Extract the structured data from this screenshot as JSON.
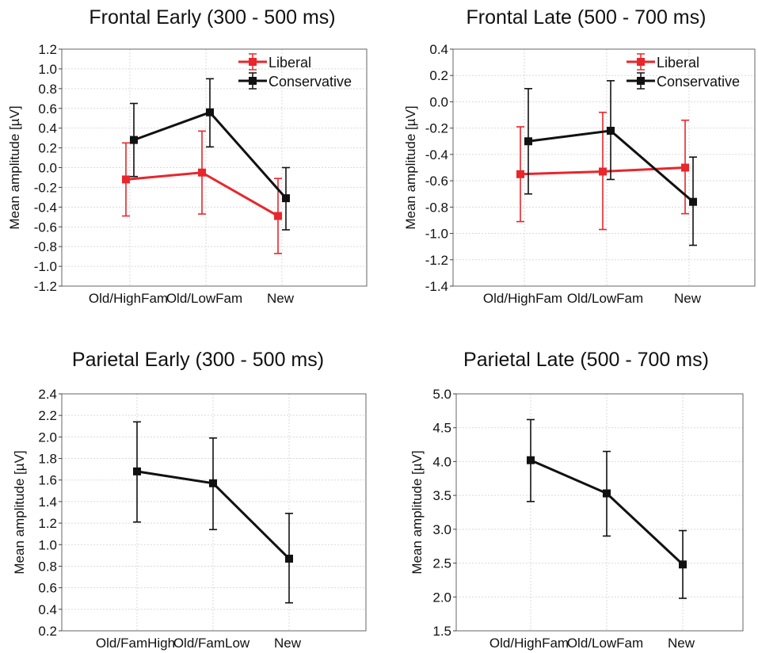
{
  "figure_type": "error-bar line charts",
  "colors": {
    "Liberal": "#e8262c",
    "Conservative": "#111111",
    "grid": "#d9d9d9",
    "frame": "#666666"
  },
  "chart_data": [
    {
      "type": "line",
      "title": "Frontal Early (300 - 500 ms)",
      "xlabel": "",
      "ylabel": "Mean amplitude [µV]",
      "categories": [
        "Old/HighFam",
        "Old/LowFam",
        "New"
      ],
      "ylim": [
        -1.2,
        1.2
      ],
      "yticks": [
        1.2,
        1.0,
        0.8,
        0.6,
        0.4,
        0.2,
        0.0,
        -0.2,
        -0.4,
        -0.6,
        -0.8,
        -1.0,
        -1.2
      ],
      "ytick_labels": [
        "1.2",
        "1.0",
        "0.8",
        "0.6",
        "0.4",
        "0.2",
        "0.0",
        "-0.2",
        "-0.4",
        "-0.6",
        "-0.8",
        "-1.0",
        "-1.2"
      ],
      "grid": true,
      "legend": {
        "position": "top-right",
        "entries": [
          "Liberal",
          "Conservative"
        ]
      },
      "series": [
        {
          "name": "Liberal",
          "color": "#e8262c",
          "values": [
            -0.12,
            -0.05,
            -0.49
          ],
          "error_low": [
            -0.49,
            -0.47,
            -0.87
          ],
          "error_high": [
            0.25,
            0.37,
            -0.11
          ]
        },
        {
          "name": "Conservative",
          "color": "#111111",
          "values": [
            0.28,
            0.56,
            -0.31
          ],
          "error_low": [
            -0.09,
            0.21,
            -0.63
          ],
          "error_high": [
            0.65,
            0.9,
            0.0
          ]
        }
      ]
    },
    {
      "type": "line",
      "title": "Frontal Late (500 - 700 ms)",
      "xlabel": "",
      "ylabel": "Mean amplitude [µV]",
      "categories": [
        "Old/HighFam",
        "Old/LowFam",
        "New"
      ],
      "ylim": [
        -1.4,
        0.4
      ],
      "yticks": [
        0.4,
        0.2,
        0.0,
        -0.2,
        -0.4,
        -0.6,
        -0.8,
        -1.0,
        -1.2,
        -1.4
      ],
      "ytick_labels": [
        "0.4",
        "0.2",
        "0.0",
        "-0.2",
        "-0.4",
        "-0.6",
        "-0.8",
        "-1.0",
        "-1.2",
        "-1.4"
      ],
      "grid": true,
      "legend": {
        "position": "top-right",
        "entries": [
          "Liberal",
          "Conservative"
        ]
      },
      "series": [
        {
          "name": "Liberal",
          "color": "#e8262c",
          "values": [
            -0.55,
            -0.53,
            -0.5
          ],
          "error_low": [
            -0.91,
            -0.97,
            -0.85
          ],
          "error_high": [
            -0.19,
            -0.08,
            -0.14
          ]
        },
        {
          "name": "Conservative",
          "color": "#111111",
          "values": [
            -0.3,
            -0.22,
            -0.76
          ],
          "error_low": [
            -0.7,
            -0.59,
            -1.09
          ],
          "error_high": [
            0.1,
            0.16,
            -0.42
          ]
        }
      ]
    },
    {
      "type": "line",
      "title": "Parietal Early (300 - 500 ms)",
      "xlabel": "",
      "ylabel": "Mean amplitude [µV]",
      "categories": [
        "Old/FamHigh",
        "Old/FamLow",
        "New"
      ],
      "ylim": [
        0.2,
        2.4
      ],
      "yticks": [
        2.4,
        2.2,
        2.0,
        1.8,
        1.6,
        1.4,
        1.2,
        1.0,
        0.8,
        0.6,
        0.4,
        0.2
      ],
      "ytick_labels": [
        "2.4",
        "2.2",
        "2.0",
        "1.8",
        "1.6",
        "1.4",
        "1.2",
        "1.0",
        "0.8",
        "0.6",
        "0.4",
        "0.2"
      ],
      "grid": true,
      "series": [
        {
          "color": "#111111",
          "values": [
            1.68,
            1.57,
            0.87
          ],
          "error_low": [
            1.21,
            1.14,
            0.46
          ],
          "error_high": [
            2.14,
            1.99,
            1.29
          ]
        }
      ]
    },
    {
      "type": "line",
      "title": "Parietal Late (500 - 700 ms)",
      "xlabel": "",
      "ylabel": "Mean amplitude [µV]",
      "categories": [
        "Old/HighFam",
        "Old/LowFam",
        "New"
      ],
      "ylim": [
        1.5,
        5.0
      ],
      "yticks": [
        5.0,
        4.5,
        4.0,
        3.5,
        3.0,
        2.5,
        2.0,
        1.5
      ],
      "ytick_labels": [
        "5.0",
        "4.5",
        "4.0",
        "3.5",
        "3.0",
        "2.5",
        "2.0",
        "1.5"
      ],
      "grid": true,
      "series": [
        {
          "color": "#111111",
          "values": [
            4.02,
            3.53,
            2.48
          ],
          "error_low": [
            3.41,
            2.9,
            1.98
          ],
          "error_high": [
            4.62,
            4.15,
            2.98
          ]
        }
      ]
    }
  ]
}
